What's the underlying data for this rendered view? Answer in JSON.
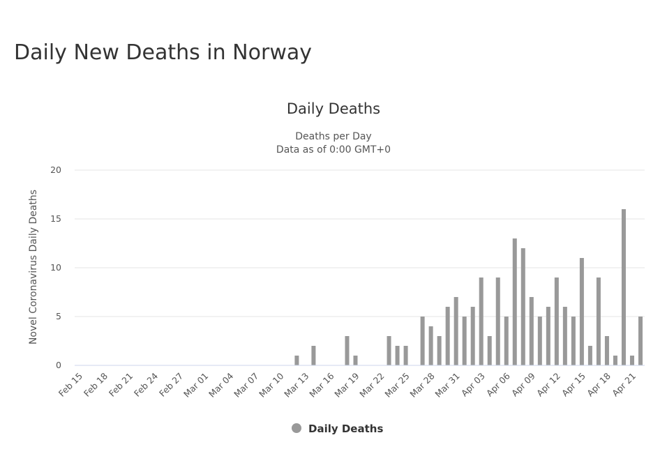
{
  "page": {
    "heading": "Daily New Deaths in Norway"
  },
  "chart_data": {
    "type": "bar",
    "title": "Daily Deaths",
    "subtitle_lines": [
      "Deaths per Day",
      "Data as of 0:00 GMT+0"
    ],
    "xlabel": "",
    "ylabel": "Novel Coronavirus Daily Deaths",
    "ylim": [
      0,
      20
    ],
    "yticks": [
      0,
      5,
      10,
      15,
      20
    ],
    "grid": true,
    "legend": {
      "position": "bottom-center",
      "entries": [
        "Daily Deaths"
      ]
    },
    "bar_color": "#999999",
    "tick_labels": [
      "Feb 15",
      "Feb 18",
      "Feb 21",
      "Feb 24",
      "Feb 27",
      "Mar 01",
      "Mar 04",
      "Mar 07",
      "Mar 10",
      "Mar 13",
      "Mar 16",
      "Mar 19",
      "Mar 22",
      "Mar 25",
      "Mar 28",
      "Mar 31",
      "Apr 03",
      "Apr 06",
      "Apr 09",
      "Apr 12",
      "Apr 15",
      "Apr 18",
      "Apr 21"
    ],
    "categories": [
      "Feb 15",
      "Feb 16",
      "Feb 17",
      "Feb 18",
      "Feb 19",
      "Feb 20",
      "Feb 21",
      "Feb 22",
      "Feb 23",
      "Feb 24",
      "Feb 25",
      "Feb 26",
      "Feb 27",
      "Feb 28",
      "Feb 29",
      "Mar 01",
      "Mar 02",
      "Mar 03",
      "Mar 04",
      "Mar 05",
      "Mar 06",
      "Mar 07",
      "Mar 08",
      "Mar 09",
      "Mar 10",
      "Mar 11",
      "Mar 12",
      "Mar 13",
      "Mar 14",
      "Mar 15",
      "Mar 16",
      "Mar 17",
      "Mar 18",
      "Mar 19",
      "Mar 20",
      "Mar 21",
      "Mar 22",
      "Mar 23",
      "Mar 24",
      "Mar 25",
      "Mar 26",
      "Mar 27",
      "Mar 28",
      "Mar 29",
      "Mar 30",
      "Mar 31",
      "Apr 01",
      "Apr 02",
      "Apr 03",
      "Apr 04",
      "Apr 05",
      "Apr 06",
      "Apr 07",
      "Apr 08",
      "Apr 09",
      "Apr 10",
      "Apr 11",
      "Apr 12",
      "Apr 13",
      "Apr 14",
      "Apr 15",
      "Apr 16",
      "Apr 17",
      "Apr 18",
      "Apr 19",
      "Apr 20",
      "Apr 21",
      "Apr 22"
    ],
    "series": [
      {
        "name": "Daily Deaths",
        "values": [
          0,
          0,
          0,
          0,
          0,
          0,
          0,
          0,
          0,
          0,
          0,
          0,
          0,
          0,
          0,
          0,
          0,
          0,
          0,
          0,
          0,
          0,
          0,
          0,
          0,
          0,
          1,
          0,
          2,
          0,
          0,
          0,
          3,
          1,
          0,
          0,
          0,
          3,
          2,
          2,
          0,
          5,
          4,
          3,
          6,
          7,
          5,
          6,
          9,
          3,
          9,
          5,
          13,
          12,
          7,
          5,
          6,
          9,
          6,
          5,
          11,
          2,
          9,
          3,
          1,
          16,
          1,
          5
        ]
      }
    ]
  }
}
